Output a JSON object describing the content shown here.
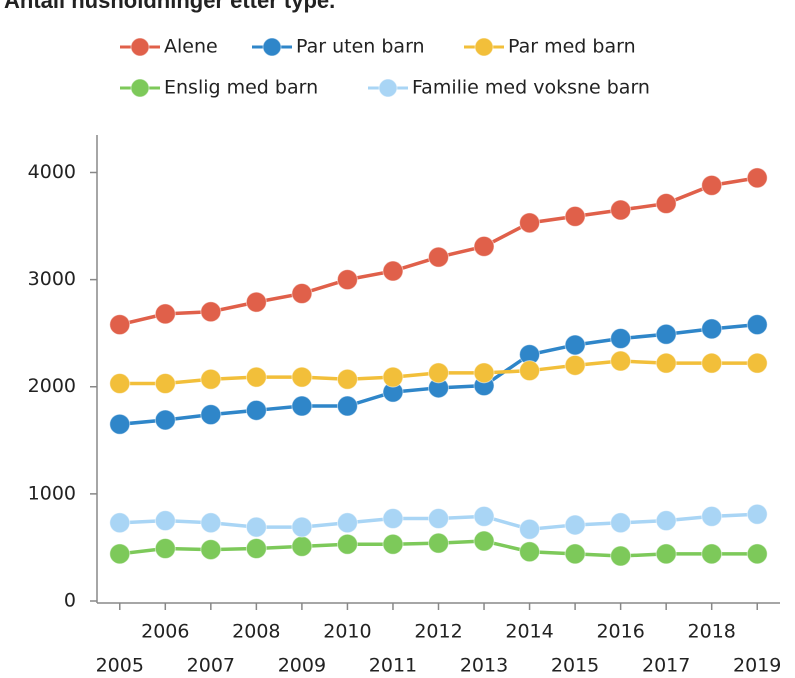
{
  "chart_data": {
    "type": "line",
    "title": "Antall husholdninger etter type.",
    "categories": [
      "2005",
      "2006",
      "2007",
      "2008",
      "2009",
      "2010",
      "2011",
      "2012",
      "2013",
      "2014",
      "2015",
      "2016",
      "2017",
      "2018",
      "2019"
    ],
    "series": [
      {
        "name": "Alene",
        "color": "#e0604a",
        "values": [
          2580,
          2680,
          2700,
          2790,
          2870,
          3000,
          3080,
          3210,
          3310,
          3530,
          3590,
          3650,
          3710,
          3880,
          3950
        ]
      },
      {
        "name": "Par uten barn",
        "color": "#2f86c9",
        "values": [
          1650,
          1690,
          1740,
          1780,
          1820,
          1820,
          1950,
          1990,
          2010,
          2300,
          2390,
          2450,
          2490,
          2540,
          2580
        ]
      },
      {
        "name": "Par med barn",
        "color": "#f2bf3a",
        "values": [
          2030,
          2030,
          2070,
          2090,
          2090,
          2070,
          2090,
          2130,
          2130,
          2150,
          2200,
          2240,
          2220,
          2220,
          2220
        ]
      },
      {
        "name": "Enslig med barn",
        "color": "#7dc95a",
        "values": [
          440,
          490,
          480,
          490,
          510,
          530,
          530,
          540,
          560,
          460,
          440,
          420,
          440,
          440,
          440
        ]
      },
      {
        "name": "Familie med voksne barn",
        "color": "#a9d5f5",
        "values": [
          730,
          750,
          730,
          690,
          690,
          730,
          770,
          770,
          790,
          670,
          710,
          730,
          750,
          790,
          810
        ]
      }
    ],
    "ylim": [
      0,
      4350
    ],
    "yticks": [
      0,
      1000,
      2000,
      3000,
      4000
    ],
    "grid": false
  }
}
